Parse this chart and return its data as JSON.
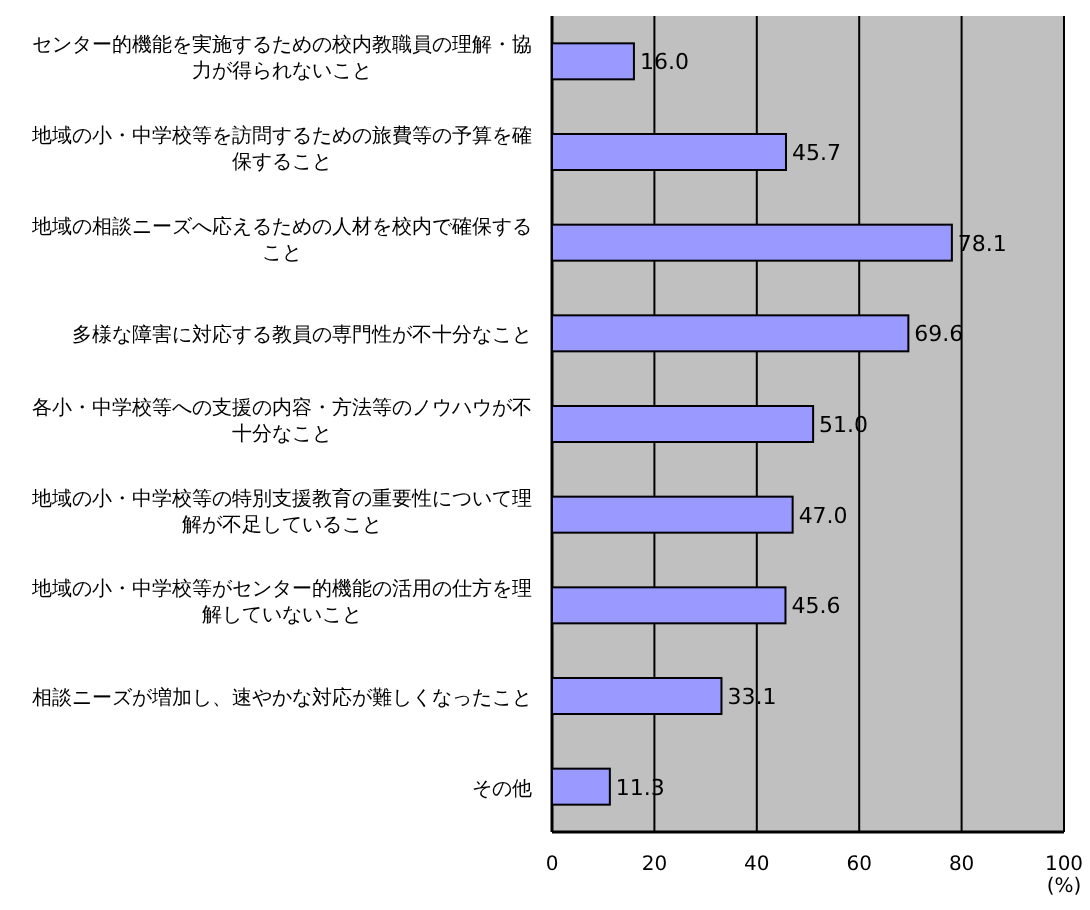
{
  "chart_data": {
    "type": "bar",
    "orientation": "horizontal",
    "categories": [
      "センター的機能を実施するための校内教職員の理解・協力が得られないこと",
      "地域の小・中学校等を訪問するための旅費等の予算を確保すること",
      "地域の相談ニーズへ応えるための人材を校内で確保すること",
      "多様な障害に対応する教員の専門性が不十分なこと",
      "各小・中学校等への支援の内容・方法等のノウハウが不十分なこと",
      "地域の小・中学校等の特別支援教育の重要性について理解が不足していること",
      "地域の小・中学校等がセンター的機能の活用の仕方を理解していないこと",
      "相談ニーズが増加し、速やかな対応が難しくなったこと",
      "その他"
    ],
    "values": [
      16.0,
      45.7,
      78.1,
      69.6,
      51.0,
      47.0,
      45.6,
      33.1,
      11.3
    ],
    "value_labels": [
      "16.0",
      "45.7",
      "78.1",
      "69.6",
      "51.0",
      "47.0",
      "45.6",
      "33.1",
      "11.3"
    ],
    "color": "#9999ff",
    "xlim": [
      0,
      100
    ],
    "xticks": [
      0,
      20,
      40,
      60,
      80,
      100
    ],
    "xlabel": "(%)",
    "grid": "x"
  }
}
